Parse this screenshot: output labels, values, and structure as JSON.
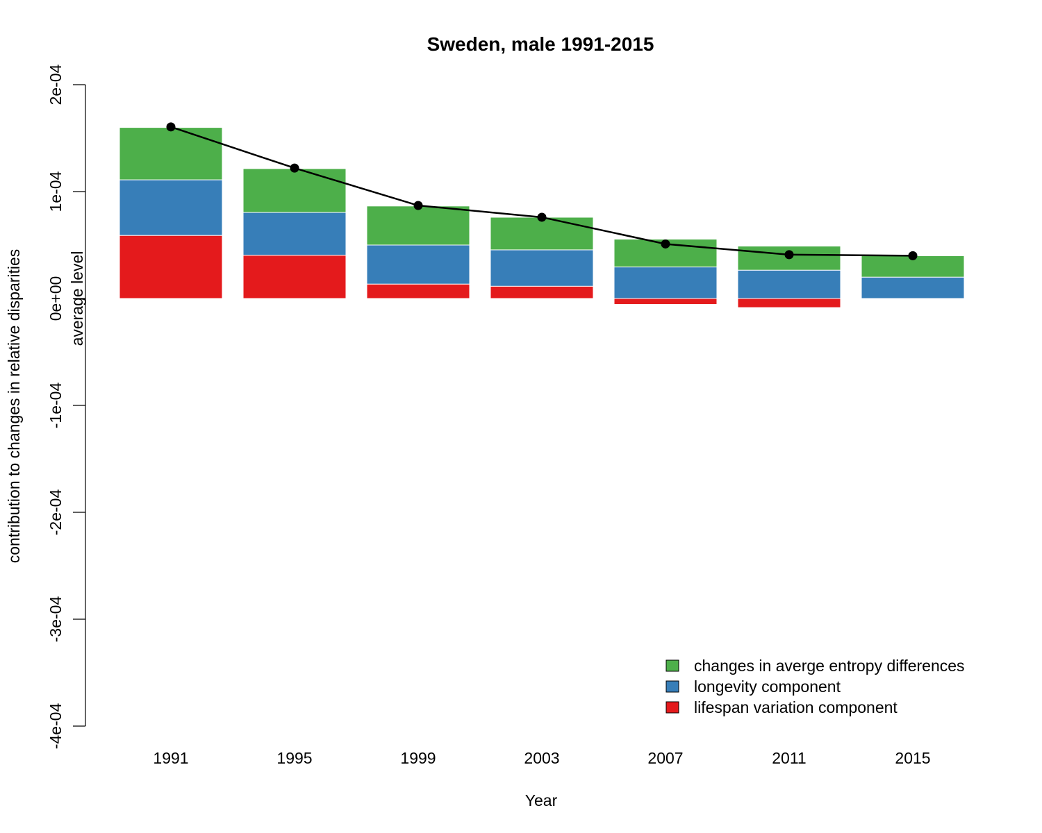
{
  "chart_data": {
    "type": "bar",
    "stacked": true,
    "title": "Sweden, male 1991-2015",
    "xlabel": "Year",
    "ylabel": "contribution to changes in relative disparities",
    "ylabel2": "average level",
    "ylim": [
      -0.0004,
      0.0002
    ],
    "yticks": [
      {
        "value": 0.0002,
        "label": "2e-04"
      },
      {
        "value": 0.0001,
        "label": "1e-04"
      },
      {
        "value": 0,
        "label": "0e+00"
      },
      {
        "value": -0.0001,
        "label": "-1e-04"
      },
      {
        "value": -0.0002,
        "label": "-2e-04"
      },
      {
        "value": -0.0003,
        "label": "-3e-04"
      },
      {
        "value": -0.0004,
        "label": "-4e-04"
      }
    ],
    "categories": [
      "1991",
      "1995",
      "1999",
      "2003",
      "2007",
      "2011",
      "2015"
    ],
    "series": [
      {
        "name": "lifespan variation component",
        "color": "#E41A1C",
        "values": [
          5.9e-05,
          4.05e-05,
          1.35e-05,
          1.15e-05,
          -5.5e-06,
          -8.5e-06,
          0.0
        ]
      },
      {
        "name": "longevity component",
        "color": "#377EB8",
        "values": [
          5.2e-05,
          4e-05,
          3.65e-05,
          3.4e-05,
          2.95e-05,
          2.65e-05,
          2e-05
        ]
      },
      {
        "name": "changes in averge entropy differences",
        "color": "#4DAF4A",
        "values": [
          4.9e-05,
          4.1e-05,
          3.65e-05,
          3.05e-05,
          2.6e-05,
          2.25e-05,
          2e-05
        ]
      }
    ],
    "line": {
      "color": "#000000",
      "values": [
        0.0001605,
        0.000122,
        8.7e-05,
        7.6e-05,
        5.1e-05,
        4.1e-05,
        4e-05
      ]
    },
    "legend": {
      "position": "bottom-right",
      "entries": [
        {
          "label": "changes in averge entropy differences",
          "color": "#4DAF4A"
        },
        {
          "label": "longevity component",
          "color": "#377EB8"
        },
        {
          "label": "lifespan variation component",
          "color": "#E41A1C"
        }
      ]
    }
  }
}
